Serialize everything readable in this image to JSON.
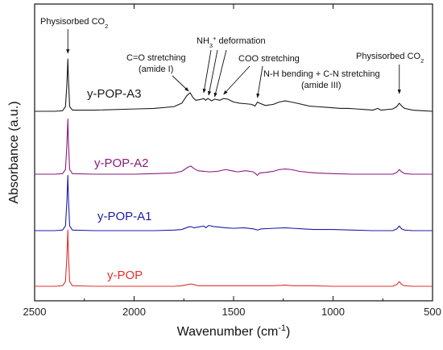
{
  "chart_data": {
    "type": "line",
    "xlabel": "Wavenumber (cm",
    "xlabel_sup": "-1",
    "xlabel_close": ")",
    "ylabel": "Absorbance (a.u.)",
    "xlim": [
      2500,
      500
    ],
    "x_reversed": true,
    "x_ticks": [
      2500,
      2000,
      1500,
      1000,
      500
    ],
    "y_ticks_shown": false,
    "grid": false,
    "legend": "inline labels beside each trace",
    "series": [
      {
        "name": "y-POP-A3",
        "color": "#1a1a1a",
        "baseline": 3.0,
        "points": [
          [
            2500,
            0.0
          ],
          [
            2400,
            0.0
          ],
          [
            2360,
            0.01
          ],
          [
            2345,
            0.08
          ],
          [
            2338,
            0.45
          ],
          [
            2333,
            0.9
          ],
          [
            2330,
            0.55
          ],
          [
            2324,
            0.08
          ],
          [
            2310,
            0.02
          ],
          [
            2200,
            0.02
          ],
          [
            2000,
            0.04
          ],
          [
            1900,
            0.05
          ],
          [
            1800,
            0.08
          ],
          [
            1760,
            0.14
          ],
          [
            1735,
            0.27
          ],
          [
            1718,
            0.32
          ],
          [
            1705,
            0.24
          ],
          [
            1690,
            0.19
          ],
          [
            1670,
            0.2
          ],
          [
            1650,
            0.22
          ],
          [
            1640,
            0.19
          ],
          [
            1630,
            0.22
          ],
          [
            1610,
            0.18
          ],
          [
            1595,
            0.21
          ],
          [
            1570,
            0.19
          ],
          [
            1550,
            0.22
          ],
          [
            1530,
            0.21
          ],
          [
            1500,
            0.16
          ],
          [
            1470,
            0.14
          ],
          [
            1440,
            0.13
          ],
          [
            1410,
            0.12
          ],
          [
            1392,
            0.09
          ],
          [
            1380,
            0.16
          ],
          [
            1370,
            0.14
          ],
          [
            1340,
            0.1
          ],
          [
            1300,
            0.12
          ],
          [
            1270,
            0.16
          ],
          [
            1240,
            0.18
          ],
          [
            1210,
            0.16
          ],
          [
            1170,
            0.13
          ],
          [
            1120,
            0.09
          ],
          [
            1080,
            0.08
          ],
          [
            1040,
            0.07
          ],
          [
            1000,
            0.06
          ],
          [
            960,
            0.05
          ],
          [
            920,
            0.05
          ],
          [
            880,
            0.04
          ],
          [
            840,
            0.03
          ],
          [
            800,
            0.02
          ],
          [
            775,
            0.05
          ],
          [
            760,
            0.02
          ],
          [
            700,
            0.04
          ],
          [
            680,
            0.08
          ],
          [
            667,
            0.14
          ],
          [
            655,
            0.09
          ],
          [
            640,
            0.05
          ],
          [
            600,
            0.02
          ],
          [
            550,
            0.01
          ],
          [
            500,
            0.0
          ]
        ]
      },
      {
        "name": "y-POP-A2",
        "color": "#8b1a7a",
        "baseline": 2.0,
        "points": [
          [
            2500,
            0.0
          ],
          [
            2400,
            0.0
          ],
          [
            2360,
            0.01
          ],
          [
            2345,
            0.08
          ],
          [
            2338,
            0.5
          ],
          [
            2333,
            0.95
          ],
          [
            2330,
            0.55
          ],
          [
            2324,
            0.08
          ],
          [
            2310,
            0.01
          ],
          [
            2200,
            0.0
          ],
          [
            2000,
            0.0
          ],
          [
            1900,
            0.01
          ],
          [
            1800,
            0.02
          ],
          [
            1760,
            0.05
          ],
          [
            1730,
            0.12
          ],
          [
            1715,
            0.14
          ],
          [
            1700,
            0.1
          ],
          [
            1680,
            0.06
          ],
          [
            1650,
            0.05
          ],
          [
            1620,
            0.04
          ],
          [
            1580,
            0.05
          ],
          [
            1540,
            0.08
          ],
          [
            1510,
            0.06
          ],
          [
            1480,
            0.04
          ],
          [
            1440,
            0.06
          ],
          [
            1400,
            0.04
          ],
          [
            1390,
            0.01
          ],
          [
            1380,
            -0.02
          ],
          [
            1370,
            0.02
          ],
          [
            1340,
            0.03
          ],
          [
            1300,
            0.05
          ],
          [
            1270,
            0.08
          ],
          [
            1240,
            0.09
          ],
          [
            1210,
            0.08
          ],
          [
            1170,
            0.05
          ],
          [
            1120,
            0.03
          ],
          [
            1080,
            0.02
          ],
          [
            1000,
            0.01
          ],
          [
            900,
            0.0
          ],
          [
            800,
            0.0
          ],
          [
            700,
            0.0
          ],
          [
            680,
            0.03
          ],
          [
            667,
            0.08
          ],
          [
            655,
            0.04
          ],
          [
            640,
            0.01
          ],
          [
            600,
            0.0
          ],
          [
            500,
            0.0
          ]
        ]
      },
      {
        "name": "y-POP-A1",
        "color": "#1c1caa",
        "baseline": 1.0,
        "points": [
          [
            2500,
            0.0
          ],
          [
            2400,
            0.0
          ],
          [
            2360,
            0.01
          ],
          [
            2345,
            0.08
          ],
          [
            2338,
            0.5
          ],
          [
            2333,
            0.95
          ],
          [
            2330,
            0.55
          ],
          [
            2324,
            0.08
          ],
          [
            2310,
            0.01
          ],
          [
            2200,
            0.0
          ],
          [
            2000,
            0.0
          ],
          [
            1900,
            0.0
          ],
          [
            1800,
            0.01
          ],
          [
            1760,
            0.02
          ],
          [
            1730,
            0.06
          ],
          [
            1715,
            0.07
          ],
          [
            1700,
            0.05
          ],
          [
            1680,
            0.06
          ],
          [
            1650,
            0.08
          ],
          [
            1640,
            0.05
          ],
          [
            1625,
            0.09
          ],
          [
            1600,
            0.07
          ],
          [
            1570,
            0.06
          ],
          [
            1540,
            0.05
          ],
          [
            1500,
            0.04
          ],
          [
            1450,
            0.05
          ],
          [
            1400,
            0.03
          ],
          [
            1380,
            0.01
          ],
          [
            1360,
            0.03
          ],
          [
            1300,
            0.04
          ],
          [
            1240,
            0.05
          ],
          [
            1200,
            0.04
          ],
          [
            1150,
            0.03
          ],
          [
            1100,
            0.02
          ],
          [
            1000,
            0.02
          ],
          [
            900,
            0.01
          ],
          [
            800,
            0.0
          ],
          [
            700,
            0.0
          ],
          [
            680,
            0.03
          ],
          [
            667,
            0.08
          ],
          [
            655,
            0.03
          ],
          [
            640,
            0.01
          ],
          [
            600,
            0.0
          ],
          [
            500,
            0.0
          ]
        ]
      },
      {
        "name": "y-POP",
        "color": "#e03030",
        "baseline": 0.0,
        "points": [
          [
            2500,
            0.0
          ],
          [
            2400,
            0.0
          ],
          [
            2360,
            0.01
          ],
          [
            2345,
            0.08
          ],
          [
            2338,
            0.5
          ],
          [
            2333,
            0.97
          ],
          [
            2330,
            0.55
          ],
          [
            2324,
            0.08
          ],
          [
            2310,
            0.01
          ],
          [
            2200,
            0.0
          ],
          [
            2000,
            0.0
          ],
          [
            1900,
            0.0
          ],
          [
            1800,
            0.0
          ],
          [
            1760,
            0.01
          ],
          [
            1730,
            0.03
          ],
          [
            1715,
            0.04
          ],
          [
            1700,
            0.03
          ],
          [
            1680,
            0.01
          ],
          [
            1600,
            0.01
          ],
          [
            1500,
            0.01
          ],
          [
            1400,
            0.01
          ],
          [
            1300,
            0.01
          ],
          [
            1240,
            0.02
          ],
          [
            1200,
            0.01
          ],
          [
            1100,
            0.01
          ],
          [
            1000,
            0.0
          ],
          [
            900,
            0.0
          ],
          [
            800,
            0.0
          ],
          [
            700,
            0.0
          ],
          [
            680,
            0.03
          ],
          [
            667,
            0.08
          ],
          [
            655,
            0.03
          ],
          [
            640,
            0.01
          ],
          [
            600,
            0.0
          ],
          [
            500,
            0.0
          ]
        ]
      }
    ],
    "annotations": {
      "phys_left": {
        "text": "Physisorbed CO",
        "sub": "2"
      },
      "phys_right": {
        "text": "Physisorbed CO",
        "sub": "2"
      },
      "co_line1": "C=O stretching",
      "co_line2": "(amide I)",
      "nh3_text": "NH",
      "nh3_sub": "3",
      "nh3_sup": "+",
      "nh3_rest": " deformation",
      "coo": "COO  stretching",
      "nh_line1": "N-H bending + C-N stretching",
      "nh_line2": "(amide III)"
    }
  }
}
